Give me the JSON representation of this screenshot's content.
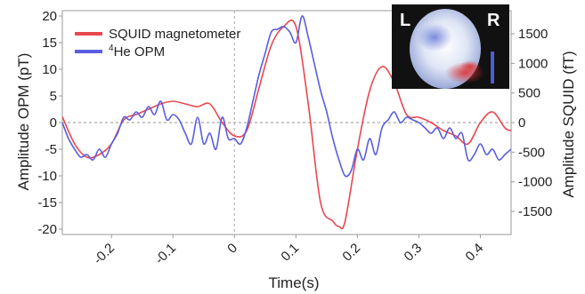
{
  "chart_data": {
    "type": "line",
    "xlabel": "Time(s)",
    "ylabel_left": "Amplitude OPM (pT)",
    "ylabel_right": "Amplitude SQUID (fT)",
    "xlim": [
      -0.28,
      0.45
    ],
    "ylim_left": [
      21,
      -21
    ],
    "ylim_right": [
      1890,
      -1890
    ],
    "x_ticks": [
      -0.2,
      -0.1,
      0,
      0.1,
      0.2,
      0.3,
      0.4
    ],
    "x_tick_labels": [
      "-0.2",
      "-0.1",
      "0",
      "0.1",
      "0.2",
      "0.3",
      "0.4"
    ],
    "y_left_ticks": [
      -20,
      -15,
      -10,
      -5,
      0,
      5,
      10,
      15,
      20
    ],
    "y_left_tick_labels": [
      "-20",
      "-15",
      "-10",
      "-5",
      "0",
      "5",
      "10",
      "15",
      "20"
    ],
    "y_right_ticks": [
      -1500,
      -1000,
      -500,
      0,
      500,
      1000,
      1500
    ],
    "y_right_tick_labels": [
      "-1500",
      "-1000",
      "-500",
      "0",
      "500",
      "1000",
      "1500"
    ],
    "legend_position": "top-left",
    "inset_labels": {
      "left": "L",
      "right": "R"
    },
    "series": [
      {
        "name": "SQUID magnetometer",
        "color": "#e8474f",
        "axis": "right",
        "x": [
          -0.28,
          -0.26,
          -0.24,
          -0.22,
          -0.2,
          -0.18,
          -0.16,
          -0.14,
          -0.12,
          -0.1,
          -0.08,
          -0.06,
          -0.04,
          -0.02,
          0.0,
          0.02,
          0.04,
          0.06,
          0.08,
          0.1,
          0.12,
          0.14,
          0.16,
          0.17,
          0.18,
          0.2,
          0.22,
          0.24,
          0.26,
          0.28,
          0.3,
          0.32,
          0.34,
          0.36,
          0.38,
          0.4,
          0.42,
          0.44,
          0.45
        ],
        "y": [
          100,
          -360,
          -585,
          -540,
          -360,
          45,
          135,
          225,
          315,
          360,
          315,
          270,
          315,
          0,
          -225,
          -135,
          585,
          1305,
          1620,
          1620,
          315,
          -1350,
          -1665,
          -1755,
          -1665,
          -450,
          540,
          945,
          675,
          135,
          90,
          0,
          -135,
          -225,
          -360,
          0,
          180,
          -90,
          -135
        ]
      },
      {
        "name": "4He OPM",
        "color": "#5a5de0",
        "axis": "left",
        "x": [
          -0.28,
          -0.27,
          -0.26,
          -0.25,
          -0.24,
          -0.23,
          -0.22,
          -0.21,
          -0.2,
          -0.19,
          -0.18,
          -0.17,
          -0.16,
          -0.15,
          -0.14,
          -0.13,
          -0.12,
          -0.11,
          -0.1,
          -0.09,
          -0.08,
          -0.07,
          -0.06,
          -0.05,
          -0.04,
          -0.03,
          -0.02,
          -0.01,
          0.0,
          0.01,
          0.02,
          0.03,
          0.04,
          0.05,
          0.06,
          0.07,
          0.08,
          0.09,
          0.1,
          0.11,
          0.12,
          0.13,
          0.14,
          0.15,
          0.16,
          0.17,
          0.18,
          0.19,
          0.2,
          0.21,
          0.22,
          0.23,
          0.24,
          0.25,
          0.26,
          0.27,
          0.28,
          0.29,
          0.3,
          0.31,
          0.32,
          0.33,
          0.34,
          0.35,
          0.36,
          0.37,
          0.38,
          0.39,
          0.4,
          0.41,
          0.42,
          0.43,
          0.44,
          0.45
        ],
        "y": [
          0,
          -3,
          -5,
          -6.5,
          -6,
          -7,
          -5,
          -6.5,
          -4,
          -2,
          1,
          0.5,
          2,
          1,
          3,
          1.5,
          4,
          0.5,
          1.5,
          0.5,
          -2,
          -4,
          1,
          -4,
          -2,
          -5,
          1,
          -3,
          -3,
          -4,
          -1,
          4,
          9,
          13,
          17,
          17.5,
          18,
          17,
          15,
          20,
          16,
          11,
          6,
          2,
          -3,
          -7,
          -10,
          -9,
          -5,
          -7,
          -3,
          -6,
          -1,
          0.5,
          2,
          0,
          1,
          0.5,
          0,
          -1,
          -2,
          -1,
          -3,
          -1,
          -3,
          -2,
          -7,
          -6,
          -4,
          -6,
          -5,
          -7,
          -6,
          -5
        ]
      }
    ]
  }
}
